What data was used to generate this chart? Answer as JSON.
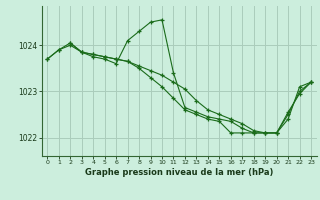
{
  "title": "Graphe pression niveau de la mer (hPa)",
  "bg_color": "#cceedd",
  "grid_color": "#aaccbb",
  "line_color": "#1a6b1a",
  "xlim": [
    -0.5,
    23.5
  ],
  "ylim": [
    1021.6,
    1024.85
  ],
  "yticks": [
    1022,
    1023,
    1024
  ],
  "xticks": [
    0,
    1,
    2,
    3,
    4,
    5,
    6,
    7,
    8,
    9,
    10,
    11,
    12,
    13,
    14,
    15,
    16,
    17,
    18,
    19,
    20,
    21,
    22,
    23
  ],
  "series": [
    {
      "x": [
        0,
        1,
        2,
        3,
        4,
        5,
        6,
        7,
        8,
        9,
        10,
        11,
        12,
        13,
        14,
        15,
        16,
        17,
        18,
        19,
        20,
        21,
        22,
        23
      ],
      "y": [
        1023.7,
        1023.9,
        1024.0,
        1023.85,
        1023.8,
        1023.75,
        1023.7,
        1023.65,
        1023.5,
        1023.3,
        1023.1,
        1022.85,
        1022.6,
        1022.5,
        1022.4,
        1022.35,
        1022.1,
        1022.1,
        1022.1,
        1022.1,
        1022.1,
        1022.4,
        1023.1,
        1023.2
      ]
    },
    {
      "x": [
        0,
        1,
        2,
        3,
        4,
        5,
        6,
        7,
        8,
        9,
        10,
        11,
        12,
        13,
        14,
        15,
        16,
        17,
        18,
        19,
        20,
        21,
        22,
        23
      ],
      "y": [
        1023.7,
        1023.9,
        1024.05,
        1023.85,
        1023.75,
        1023.7,
        1023.6,
        1024.1,
        1024.3,
        1024.5,
        1024.55,
        1023.4,
        1022.65,
        1022.55,
        1022.45,
        1022.4,
        1022.35,
        1022.2,
        1022.1,
        1022.1,
        1022.1,
        1022.55,
        1022.95,
        1023.2
      ]
    },
    {
      "x": [
        2,
        3,
        4,
        5,
        6,
        7,
        8,
        9,
        10,
        11,
        12,
        13,
        14,
        15,
        16,
        17,
        18,
        19,
        20,
        21,
        22,
        23
      ],
      "y": [
        1024.05,
        1023.85,
        1023.8,
        1023.75,
        1023.7,
        1023.65,
        1023.55,
        1023.45,
        1023.35,
        1023.2,
        1023.05,
        1022.8,
        1022.6,
        1022.5,
        1022.4,
        1022.3,
        1022.15,
        1022.1,
        1022.1,
        1022.5,
        1023.0,
        1023.2
      ]
    }
  ]
}
